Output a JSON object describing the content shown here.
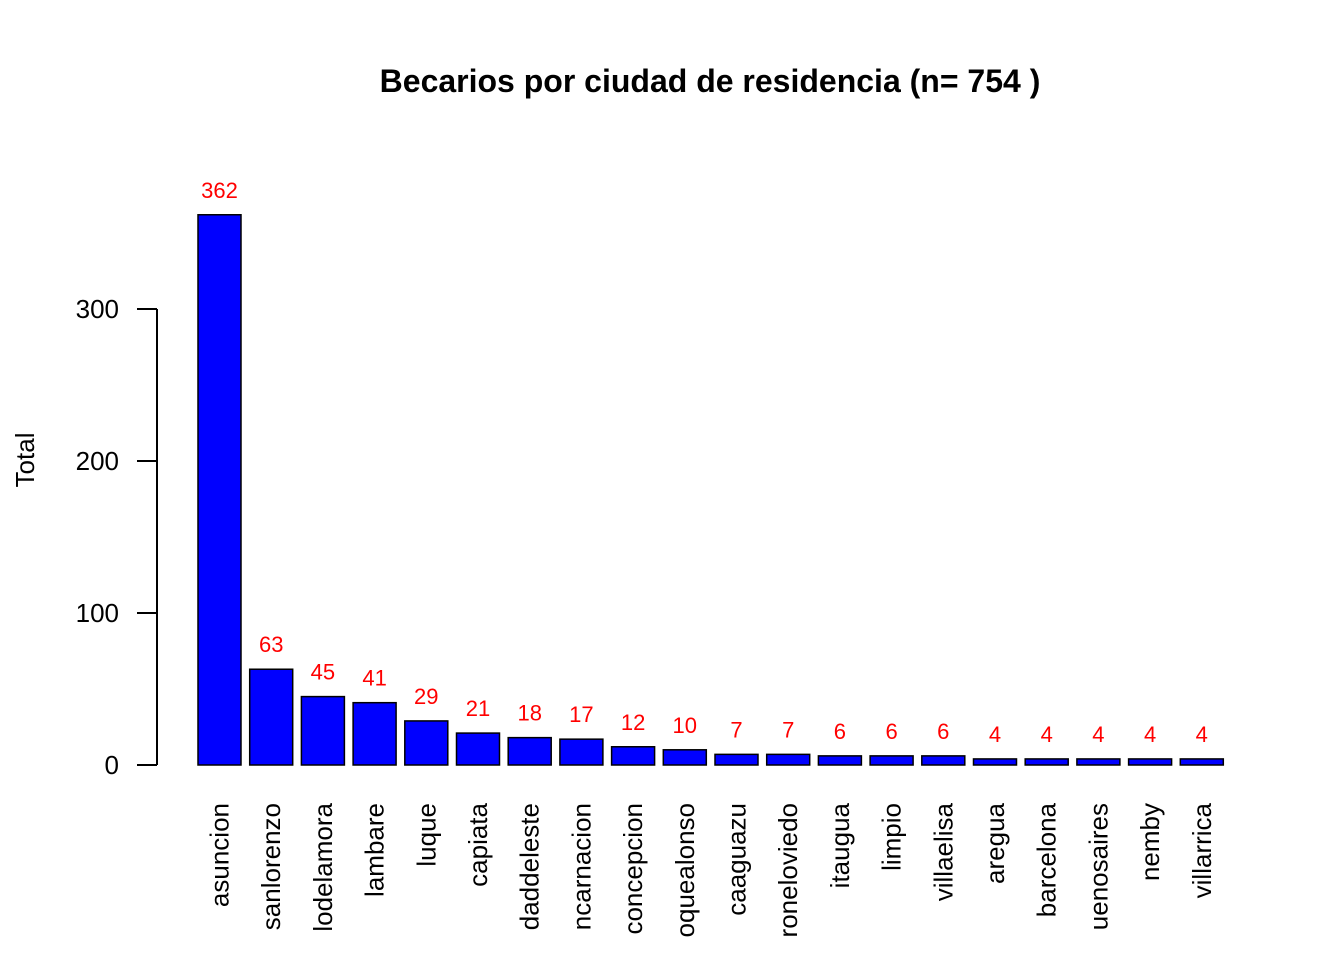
{
  "chart_data": {
    "type": "bar",
    "title": "Becarios por ciudad de residencia (n= 754 )",
    "xlabel": "",
    "ylabel": "Total",
    "ylim": [
      0,
      362
    ],
    "yticks": [
      0,
      100,
      200,
      300
    ],
    "categories": [
      "asuncion",
      "sanlorenzo",
      "lodelamora",
      "lambare",
      "luque",
      "capiata",
      "daddeleste",
      "ncarnacion",
      "concepcion",
      "oquealonso",
      "caaguazu",
      "roneloviedo",
      "itaugua",
      "limpio",
      "villaelisa",
      "aregua",
      "barcelona",
      "uenosaires",
      "nemby",
      "villarrica"
    ],
    "values": [
      362,
      63,
      45,
      41,
      29,
      21,
      18,
      17,
      12,
      10,
      7,
      7,
      6,
      6,
      6,
      4,
      4,
      4,
      4,
      4
    ],
    "grid": false,
    "bar_color": "#0000ff",
    "label_color": "#ff0000"
  }
}
